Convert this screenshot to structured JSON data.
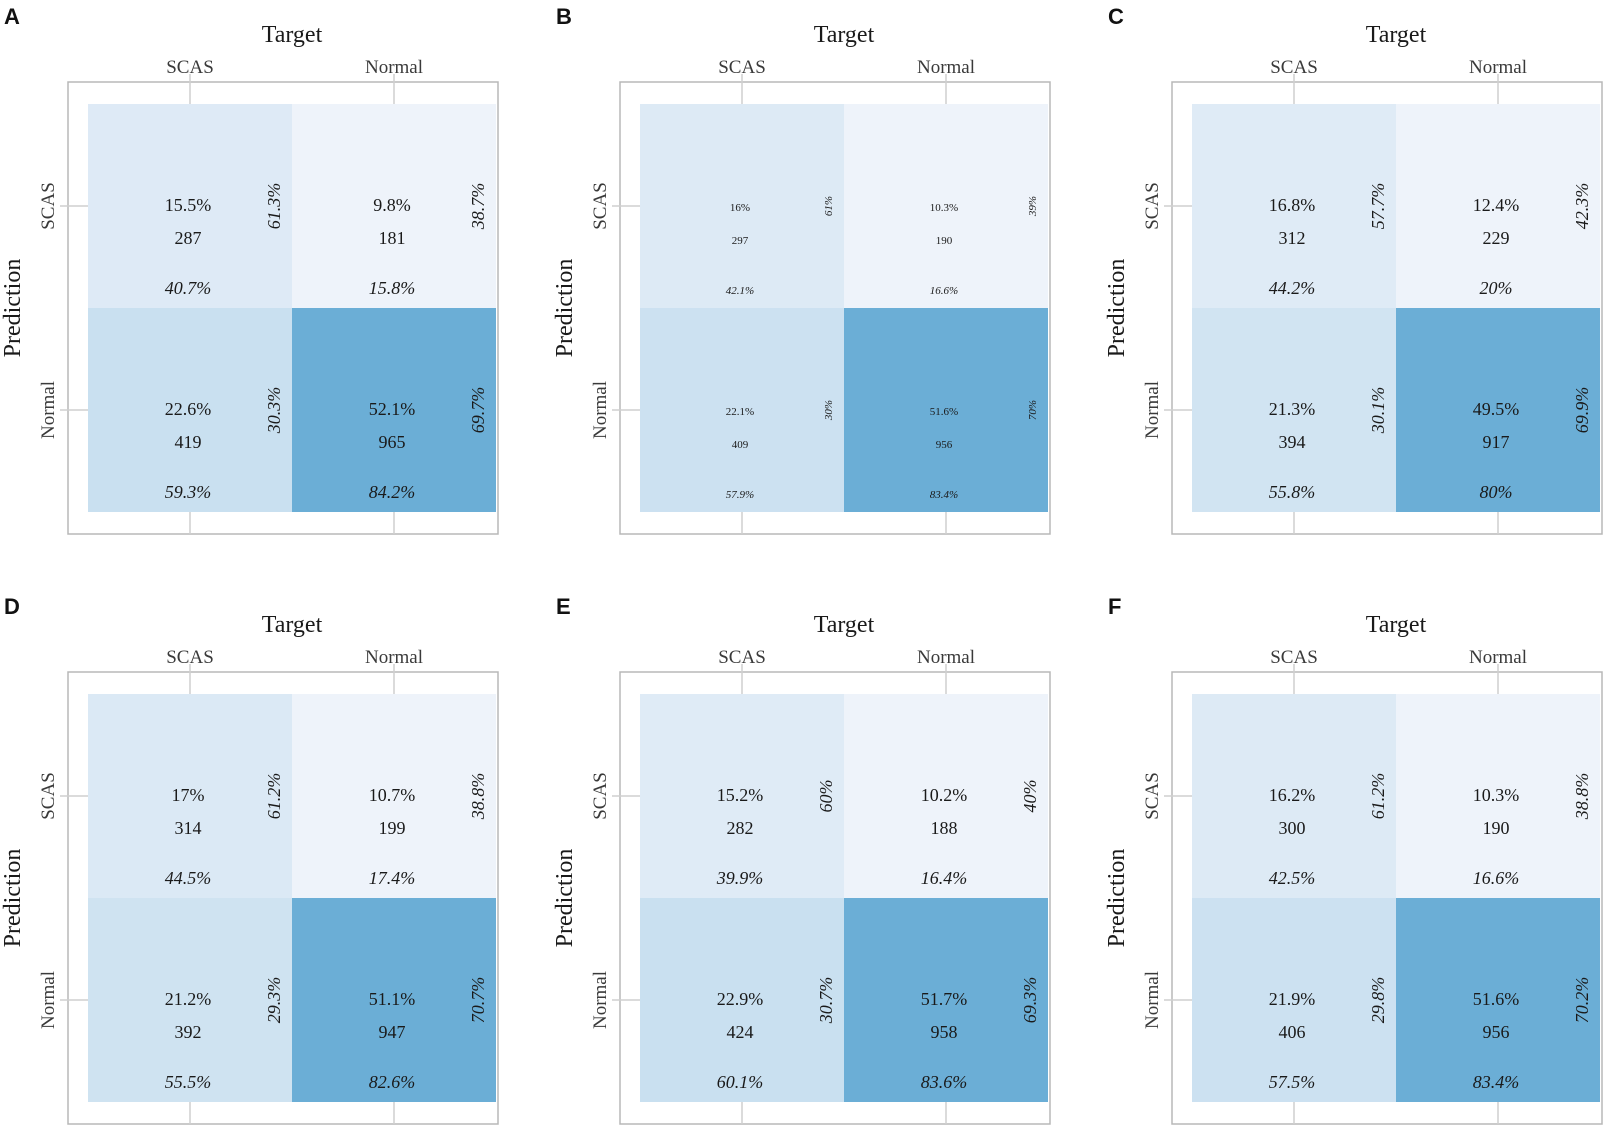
{
  "chart_data": [
    {
      "type": "heatmap",
      "panel": "A",
      "xlabel": "Target",
      "ylabel": "Prediction",
      "x_categories": [
        "SCAS",
        "Normal"
      ],
      "y_categories": [
        "SCAS",
        "Normal"
      ],
      "small_text": false,
      "cells": [
        {
          "row": "SCAS",
          "col": "SCAS",
          "total_pct": "15.5%",
          "count": "287",
          "row_pct": "61.3%",
          "col_pct": "40.7%",
          "value": 287
        },
        {
          "row": "SCAS",
          "col": "Normal",
          "total_pct": "9.8%",
          "count": "181",
          "row_pct": "38.7%",
          "col_pct": "15.8%",
          "value": 181
        },
        {
          "row": "Normal",
          "col": "SCAS",
          "total_pct": "22.6%",
          "count": "419",
          "row_pct": "30.3%",
          "col_pct": "59.3%",
          "value": 419
        },
        {
          "row": "Normal",
          "col": "Normal",
          "total_pct": "52.1%",
          "count": "965",
          "row_pct": "69.7%",
          "col_pct": "84.2%",
          "value": 965
        }
      ]
    },
    {
      "type": "heatmap",
      "panel": "B",
      "xlabel": "Target",
      "ylabel": "Prediction",
      "x_categories": [
        "SCAS",
        "Normal"
      ],
      "y_categories": [
        "SCAS",
        "Normal"
      ],
      "small_text": true,
      "cells": [
        {
          "row": "SCAS",
          "col": "SCAS",
          "total_pct": "16%",
          "count": "297",
          "row_pct": "61%",
          "col_pct": "42.1%",
          "value": 297
        },
        {
          "row": "SCAS",
          "col": "Normal",
          "total_pct": "10.3%",
          "count": "190",
          "row_pct": "39%",
          "col_pct": "16.6%",
          "value": 190
        },
        {
          "row": "Normal",
          "col": "SCAS",
          "total_pct": "22.1%",
          "count": "409",
          "row_pct": "30%",
          "col_pct": "57.9%",
          "value": 409
        },
        {
          "row": "Normal",
          "col": "Normal",
          "total_pct": "51.6%",
          "count": "956",
          "row_pct": "70%",
          "col_pct": "83.4%",
          "value": 956
        }
      ]
    },
    {
      "type": "heatmap",
      "panel": "C",
      "xlabel": "Target",
      "ylabel": "Prediction",
      "x_categories": [
        "SCAS",
        "Normal"
      ],
      "y_categories": [
        "SCAS",
        "Normal"
      ],
      "small_text": false,
      "cells": [
        {
          "row": "SCAS",
          "col": "SCAS",
          "total_pct": "16.8%",
          "count": "312",
          "row_pct": "57.7%",
          "col_pct": "44.2%",
          "value": 312
        },
        {
          "row": "SCAS",
          "col": "Normal",
          "total_pct": "12.4%",
          "count": "229",
          "row_pct": "42.3%",
          "col_pct": "20%",
          "value": 229
        },
        {
          "row": "Normal",
          "col": "SCAS",
          "total_pct": "21.3%",
          "count": "394",
          "row_pct": "30.1%",
          "col_pct": "55.8%",
          "value": 394
        },
        {
          "row": "Normal",
          "col": "Normal",
          "total_pct": "49.5%",
          "count": "917",
          "row_pct": "69.9%",
          "col_pct": "80%",
          "value": 917
        }
      ]
    },
    {
      "type": "heatmap",
      "panel": "D",
      "xlabel": "Target",
      "ylabel": "Prediction",
      "x_categories": [
        "SCAS",
        "Normal"
      ],
      "y_categories": [
        "SCAS",
        "Normal"
      ],
      "small_text": false,
      "cells": [
        {
          "row": "SCAS",
          "col": "SCAS",
          "total_pct": "17%",
          "count": "314",
          "row_pct": "61.2%",
          "col_pct": "44.5%",
          "value": 314
        },
        {
          "row": "SCAS",
          "col": "Normal",
          "total_pct": "10.7%",
          "count": "199",
          "row_pct": "38.8%",
          "col_pct": "17.4%",
          "value": 199
        },
        {
          "row": "Normal",
          "col": "SCAS",
          "total_pct": "21.2%",
          "count": "392",
          "row_pct": "29.3%",
          "col_pct": "55.5%",
          "value": 392
        },
        {
          "row": "Normal",
          "col": "Normal",
          "total_pct": "51.1%",
          "count": "947",
          "row_pct": "70.7%",
          "col_pct": "82.6%",
          "value": 947
        }
      ]
    },
    {
      "type": "heatmap",
      "panel": "E",
      "xlabel": "Target",
      "ylabel": "Prediction",
      "x_categories": [
        "SCAS",
        "Normal"
      ],
      "y_categories": [
        "SCAS",
        "Normal"
      ],
      "small_text": false,
      "cells": [
        {
          "row": "SCAS",
          "col": "SCAS",
          "total_pct": "15.2%",
          "count": "282",
          "row_pct": "60%",
          "col_pct": "39.9%",
          "value": 282
        },
        {
          "row": "SCAS",
          "col": "Normal",
          "total_pct": "10.2%",
          "count": "188",
          "row_pct": "40%",
          "col_pct": "16.4%",
          "value": 188
        },
        {
          "row": "Normal",
          "col": "SCAS",
          "total_pct": "22.9%",
          "count": "424",
          "row_pct": "30.7%",
          "col_pct": "60.1%",
          "value": 424
        },
        {
          "row": "Normal",
          "col": "Normal",
          "total_pct": "51.7%",
          "count": "958",
          "row_pct": "69.3%",
          "col_pct": "83.6%",
          "value": 958
        }
      ]
    },
    {
      "type": "heatmap",
      "panel": "F",
      "xlabel": "Target",
      "ylabel": "Prediction",
      "x_categories": [
        "SCAS",
        "Normal"
      ],
      "y_categories": [
        "SCAS",
        "Normal"
      ],
      "small_text": false,
      "cells": [
        {
          "row": "SCAS",
          "col": "SCAS",
          "total_pct": "16.2%",
          "count": "300",
          "row_pct": "61.2%",
          "col_pct": "42.5%",
          "value": 300
        },
        {
          "row": "SCAS",
          "col": "Normal",
          "total_pct": "10.3%",
          "count": "190",
          "row_pct": "38.8%",
          "col_pct": "16.6%",
          "value": 190
        },
        {
          "row": "Normal",
          "col": "SCAS",
          "total_pct": "21.9%",
          "count": "406",
          "row_pct": "29.8%",
          "col_pct": "57.5%",
          "value": 406
        },
        {
          "row": "Normal",
          "col": "Normal",
          "total_pct": "51.6%",
          "count": "956",
          "row_pct": "70.2%",
          "col_pct": "83.4%",
          "value": 956
        }
      ]
    }
  ],
  "colors": {
    "low": "#eef3fa",
    "high": "#6baed6",
    "frame": "#b8b8b8",
    "tick": "#cfcfcf"
  }
}
